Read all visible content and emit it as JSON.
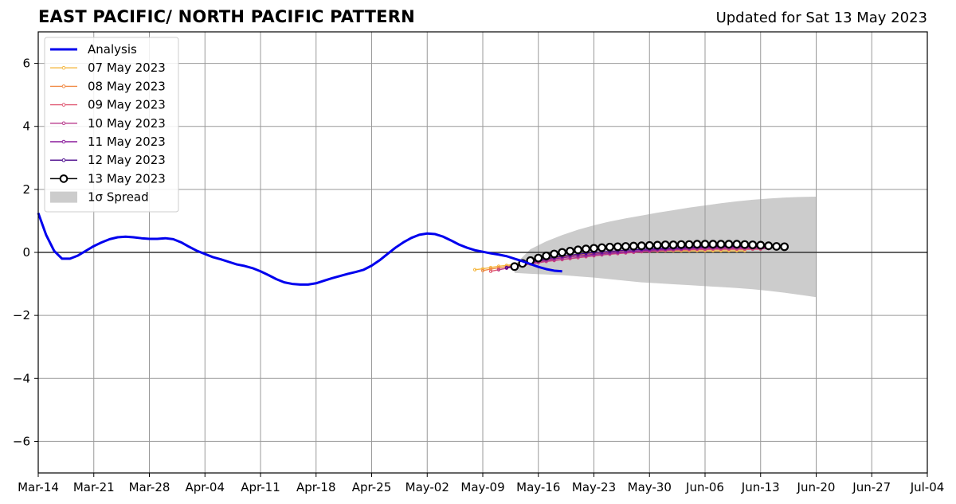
{
  "header": {
    "title": "EAST PACIFIC/ NORTH PACIFIC PATTERN",
    "updated": "Updated for Sat 13 May 2023"
  },
  "chart_data": {
    "type": "line",
    "title": "EAST PACIFIC/ NORTH PACIFIC PATTERN",
    "xlabel": "",
    "ylabel": "",
    "x_range": [
      "2023-03-14",
      "2023-07-04"
    ],
    "ylim": [
      -7,
      7
    ],
    "x_ticks": [
      {
        "date": "2023-03-14",
        "label": "Mar-14"
      },
      {
        "date": "2023-03-21",
        "label": "Mar-21"
      },
      {
        "date": "2023-03-28",
        "label": "Mar-28"
      },
      {
        "date": "2023-04-04",
        "label": "Apr-04"
      },
      {
        "date": "2023-04-11",
        "label": "Apr-11"
      },
      {
        "date": "2023-04-18",
        "label": "Apr-18"
      },
      {
        "date": "2023-04-25",
        "label": "Apr-25"
      },
      {
        "date": "2023-05-02",
        "label": "May-02"
      },
      {
        "date": "2023-05-09",
        "label": "May-09"
      },
      {
        "date": "2023-05-16",
        "label": "May-16"
      },
      {
        "date": "2023-05-23",
        "label": "May-23"
      },
      {
        "date": "2023-05-30",
        "label": "May-30"
      },
      {
        "date": "2023-06-06",
        "label": "Jun-06"
      },
      {
        "date": "2023-06-13",
        "label": "Jun-13"
      },
      {
        "date": "2023-06-20",
        "label": "Jun-20"
      },
      {
        "date": "2023-06-27",
        "label": "Jun-27"
      },
      {
        "date": "2023-07-04",
        "label": "Jul-04"
      }
    ],
    "y_ticks": [
      {
        "value": 6,
        "label": "6"
      },
      {
        "value": 4,
        "label": "4"
      },
      {
        "value": 2,
        "label": "2"
      },
      {
        "value": 0,
        "label": "0"
      },
      {
        "value": -2,
        "label": "−2"
      },
      {
        "value": -4,
        "label": "−4"
      },
      {
        "value": -6,
        "label": "−6"
      }
    ],
    "grid": true,
    "zero_line": 0,
    "legend_position": "top-left",
    "analysis": {
      "name": "Analysis",
      "color": "#0000ee",
      "start_date": "2023-03-14",
      "values": [
        1.25,
        0.55,
        0.05,
        -0.2,
        -0.2,
        -0.1,
        0.05,
        0.2,
        0.32,
        0.42,
        0.48,
        0.5,
        0.48,
        0.45,
        0.43,
        0.43,
        0.45,
        0.42,
        0.32,
        0.18,
        0.05,
        -0.05,
        -0.15,
        -0.22,
        -0.3,
        -0.38,
        -0.43,
        -0.5,
        -0.6,
        -0.72,
        -0.85,
        -0.95,
        -1.0,
        -1.02,
        -1.02,
        -0.98,
        -0.9,
        -0.82,
        -0.75,
        -0.68,
        -0.62,
        -0.55,
        -0.42,
        -0.25,
        -0.05,
        0.15,
        0.32,
        0.46,
        0.56,
        0.6,
        0.58,
        0.5,
        0.38,
        0.25,
        0.15,
        0.07,
        0.02,
        -0.03,
        -0.07,
        -0.12,
        -0.2,
        -0.28,
        -0.37,
        -0.46,
        -0.53,
        -0.58,
        -0.6
      ]
    },
    "spread": {
      "name": "1σ Spread",
      "color": "#cccccc",
      "start_date": "2023-05-13",
      "upper": [
        -0.4,
        0.1,
        0.35,
        0.55,
        0.72,
        0.86,
        0.98,
        1.08,
        1.17,
        1.26,
        1.34,
        1.42,
        1.49,
        1.56,
        1.62,
        1.67,
        1.71,
        1.74,
        1.76,
        1.77
      ],
      "lower": [
        -0.65,
        -0.68,
        -0.7,
        -0.72,
        -0.76,
        -0.8,
        -0.85,
        -0.9,
        -0.95,
        -0.98,
        -1.01,
        -1.04,
        -1.07,
        -1.1,
        -1.13,
        -1.17,
        -1.22,
        -1.28,
        -1.35,
        -1.42
      ]
    },
    "forecasts": [
      {
        "name": "07 May 2023",
        "color": "#f5b842",
        "start_date": "2023-05-08",
        "values": [
          -0.55,
          -0.52,
          -0.48,
          -0.44,
          -0.41,
          -0.38,
          -0.33,
          -0.29,
          -0.25,
          -0.21,
          -0.17,
          -0.14,
          -0.11,
          -0.08,
          -0.06,
          -0.04,
          -0.02,
          -0.01,
          0.0,
          0.01,
          0.02,
          0.03,
          0.04,
          0.04,
          0.05,
          0.05,
          0.05,
          0.05,
          0.05,
          0.05,
          0.05,
          0.05,
          0.05,
          0.05,
          0.05
        ]
      },
      {
        "name": "08 May 2023",
        "color": "#f08a45",
        "start_date": "2023-05-09",
        "values": [
          -0.58,
          -0.53,
          -0.49,
          -0.45,
          -0.41,
          -0.37,
          -0.33,
          -0.29,
          -0.25,
          -0.21,
          -0.17,
          -0.14,
          -0.11,
          -0.08,
          -0.05,
          -0.03,
          -0.01,
          0.01,
          0.03,
          0.04,
          0.05,
          0.06,
          0.07,
          0.08,
          0.08,
          0.09,
          0.09,
          0.1,
          0.1,
          0.1,
          0.1,
          0.1,
          0.1,
          0.1,
          0.1
        ]
      },
      {
        "name": "09 May 2023",
        "color": "#e05a74",
        "start_date": "2023-05-10",
        "values": [
          -0.6,
          -0.55,
          -0.5,
          -0.45,
          -0.41,
          -0.37,
          -0.33,
          -0.29,
          -0.26,
          -0.23,
          -0.2,
          -0.17,
          -0.14,
          -0.11,
          -0.08,
          -0.06,
          -0.04,
          -0.02,
          0.0,
          0.02,
          0.03,
          0.05,
          0.06,
          0.07,
          0.08,
          0.08,
          0.09,
          0.09,
          0.1,
          0.1,
          0.1,
          0.1,
          0.1,
          0.1,
          0.1
        ]
      },
      {
        "name": "10 May 2023",
        "color": "#b83a8c",
        "start_date": "2023-05-11",
        "values": [
          -0.55,
          -0.5,
          -0.45,
          -0.4,
          -0.36,
          -0.32,
          -0.28,
          -0.25,
          -0.22,
          -0.19,
          -0.16,
          -0.13,
          -0.1,
          -0.08,
          -0.05,
          -0.03,
          -0.01,
          0.01,
          0.03,
          0.04,
          0.06,
          0.07,
          0.08,
          0.09,
          0.1,
          0.11,
          0.11,
          0.12,
          0.12,
          0.12,
          0.12,
          0.12,
          0.12,
          0.12,
          0.12
        ]
      },
      {
        "name": "11 May 2023",
        "color": "#8a1c9c",
        "start_date": "2023-05-12",
        "values": [
          -0.5,
          -0.44,
          -0.38,
          -0.33,
          -0.28,
          -0.24,
          -0.2,
          -0.17,
          -0.14,
          -0.11,
          -0.09,
          -0.06,
          -0.04,
          -0.02,
          0.0,
          0.02,
          0.04,
          0.06,
          0.07,
          0.09,
          0.1,
          0.11,
          0.12,
          0.13,
          0.14,
          0.15,
          0.15,
          0.16,
          0.16,
          0.16,
          0.16,
          0.16,
          0.16,
          0.16,
          0.16
        ]
      },
      {
        "name": "12 May 2023",
        "color": "#4b0a8c",
        "start_date": "2023-05-12",
        "values": [
          -0.48,
          -0.42,
          -0.36,
          -0.3,
          -0.25,
          -0.2,
          -0.16,
          -0.12,
          -0.09,
          -0.06,
          -0.03,
          -0.01,
          0.01,
          0.03,
          0.05,
          0.07,
          0.08,
          0.1,
          0.11,
          0.12,
          0.13,
          0.14,
          0.15,
          0.16,
          0.17,
          0.18,
          0.18,
          0.19,
          0.19,
          0.19,
          0.19,
          0.19,
          0.19,
          0.19,
          0.19
        ]
      },
      {
        "name": "13 May 2023",
        "color": "#000000",
        "start_date": "2023-05-13",
        "markers": true,
        "values": [
          -0.45,
          -0.35,
          -0.26,
          -0.18,
          -0.11,
          -0.05,
          0.0,
          0.04,
          0.08,
          0.11,
          0.13,
          0.15,
          0.17,
          0.18,
          0.19,
          0.2,
          0.21,
          0.22,
          0.23,
          0.24,
          0.24,
          0.25,
          0.25,
          0.26,
          0.26,
          0.26,
          0.26,
          0.26,
          0.26,
          0.25,
          0.24,
          0.23,
          0.21,
          0.19,
          0.18
        ]
      }
    ]
  }
}
